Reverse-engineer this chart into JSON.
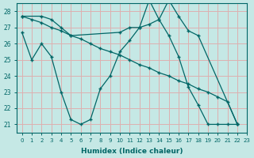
{
  "xlabel": "Humidex (Indice chaleur)",
  "bg_color": "#c5e8e5",
  "grid_color": "#ddb0b0",
  "line_color": "#006666",
  "xlim": [
    -0.5,
    23
  ],
  "ylim": [
    20.5,
    28.5
  ],
  "yticks": [
    21,
    22,
    23,
    24,
    25,
    26,
    27,
    28
  ],
  "xticks": [
    0,
    1,
    2,
    3,
    4,
    5,
    6,
    7,
    8,
    9,
    10,
    11,
    12,
    13,
    14,
    15,
    16,
    17,
    18,
    19,
    20,
    21,
    22,
    23
  ],
  "s1x": [
    0,
    1,
    2,
    3,
    4,
    5,
    6,
    7,
    8,
    9,
    10,
    11,
    12,
    13,
    14,
    15,
    16,
    17,
    18,
    19,
    20,
    21,
    22
  ],
  "s1y": [
    26.7,
    25.0,
    26.0,
    25.2,
    23.0,
    21.3,
    21.0,
    21.3,
    23.2,
    24.0,
    25.5,
    26.2,
    27.0,
    28.7,
    27.5,
    26.5,
    25.2,
    23.3,
    22.2,
    21.0,
    21.0,
    21.0,
    21.0
  ],
  "s2x": [
    0,
    1,
    2,
    3,
    4,
    5,
    6,
    7,
    8,
    9,
    10,
    11,
    12,
    13,
    14,
    15,
    16,
    17,
    18,
    19,
    20,
    21,
    22
  ],
  "s2y": [
    27.7,
    27.5,
    27.3,
    27.0,
    26.8,
    26.5,
    26.3,
    26.0,
    25.7,
    25.5,
    25.3,
    25.0,
    24.7,
    24.5,
    24.2,
    24.0,
    23.7,
    23.5,
    23.2,
    23.0,
    22.7,
    22.4,
    21.0
  ],
  "s3x": [
    0,
    2,
    3,
    4,
    5,
    10,
    11,
    12,
    13,
    14,
    15,
    16,
    17,
    18,
    22
  ],
  "s3y": [
    27.7,
    27.7,
    27.5,
    27.0,
    26.5,
    26.7,
    27.0,
    27.0,
    27.2,
    27.5,
    28.7,
    27.7,
    26.8,
    26.5,
    21.0
  ]
}
